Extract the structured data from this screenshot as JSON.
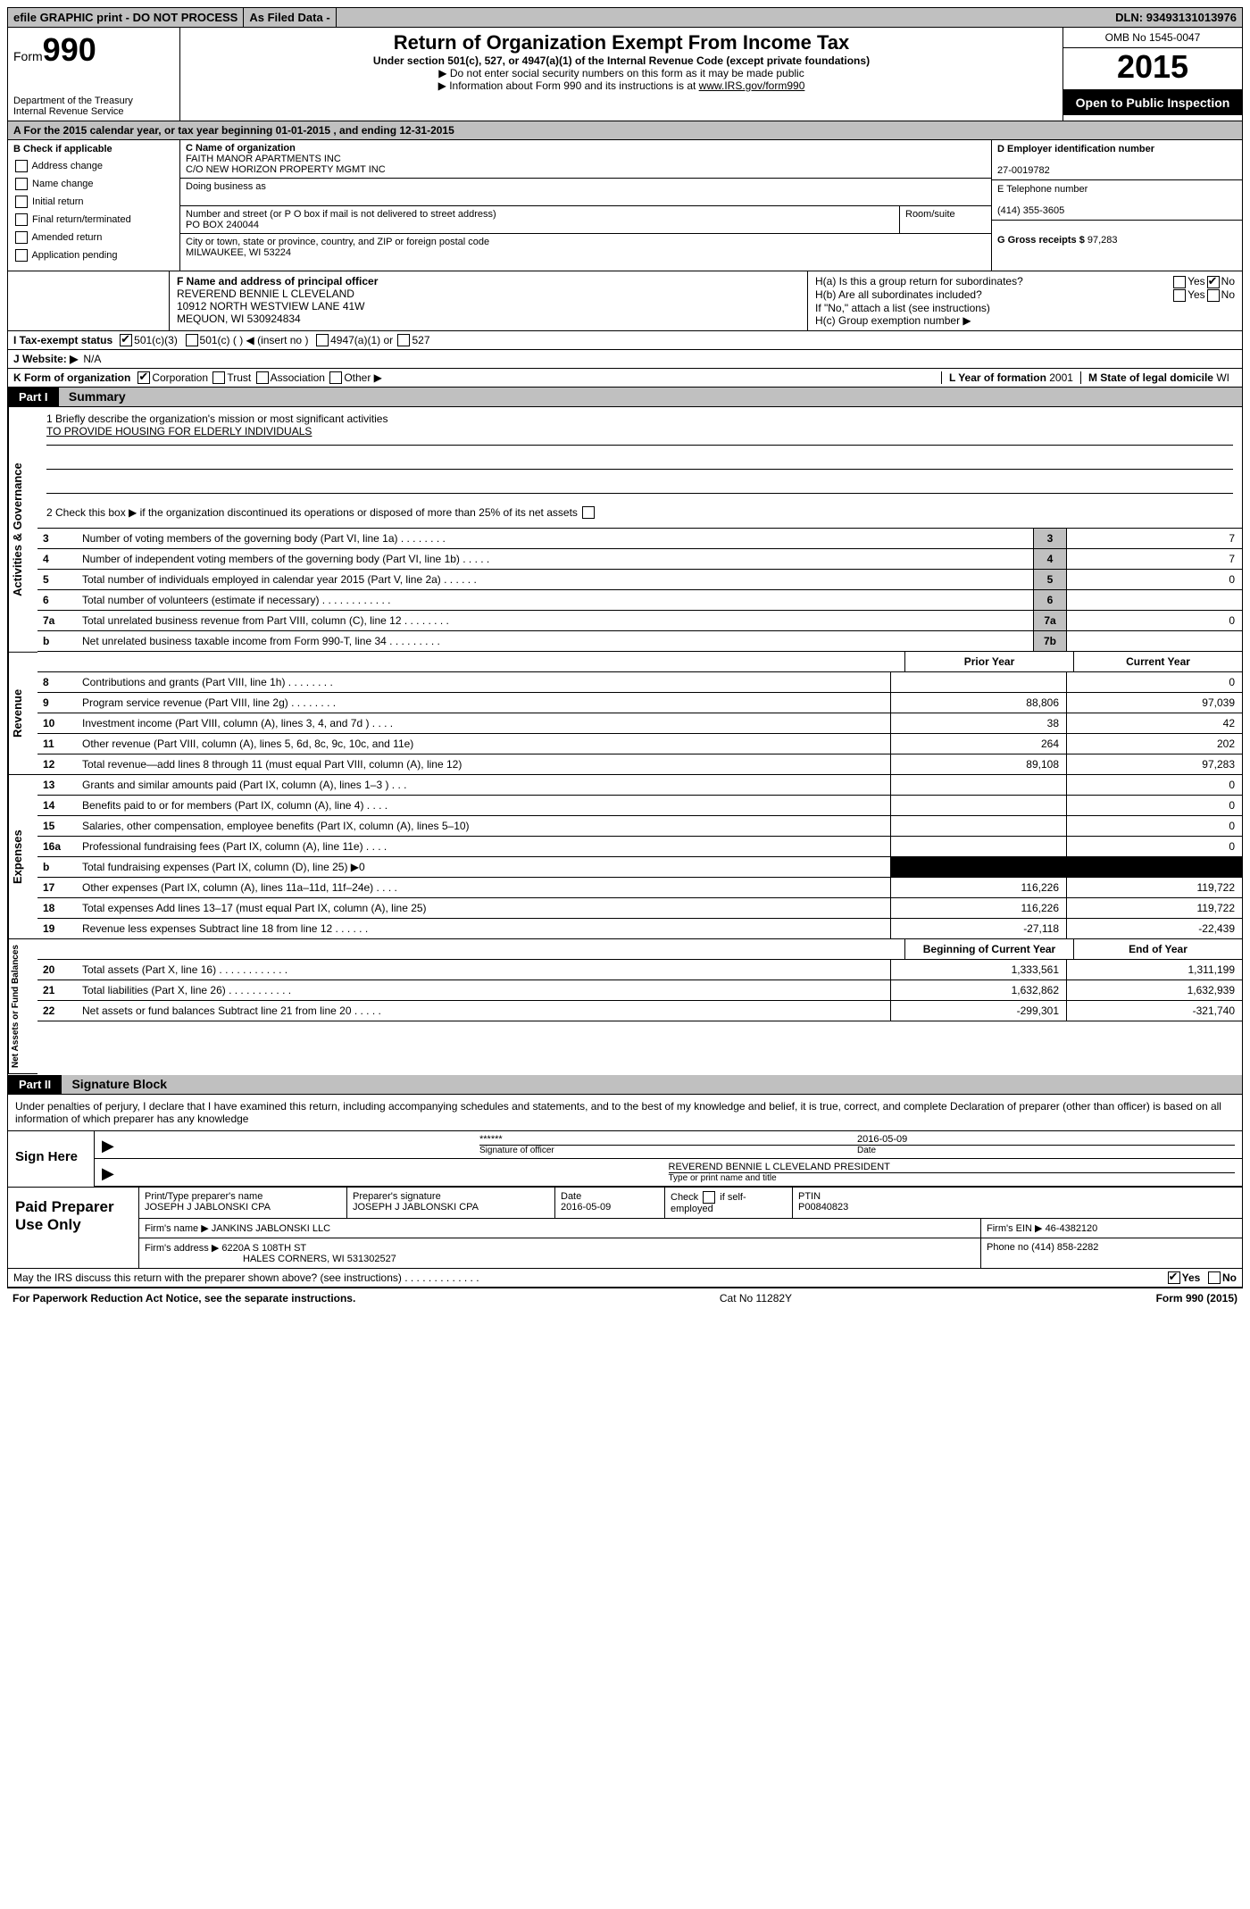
{
  "topbar": {
    "efile": "efile GRAPHIC print - DO NOT PROCESS",
    "asfiled": "As Filed Data -",
    "dln_label": "DLN:",
    "dln": "93493131013976"
  },
  "header": {
    "form_label": "Form",
    "form_num": "990",
    "dept": "Department of the Treasury",
    "irs": "Internal Revenue Service",
    "title": "Return of Organization Exempt From Income Tax",
    "subtitle": "Under section 501(c), 527, or 4947(a)(1) of the Internal Revenue Code (except private foundations)",
    "note1": "▶ Do not enter social security numbers on this form as it may be made public",
    "note2": "▶ Information about Form 990 and its instructions is at ",
    "note2_link": "www.IRS.gov/form990",
    "omb": "OMB No  1545-0047",
    "year": "2015",
    "open": "Open to Public Inspection"
  },
  "row_a": "A   For the 2015 calendar year, or tax year beginning 01-01-2015     , and ending 12-31-2015",
  "col_b": {
    "title": "B  Check if applicable",
    "items": [
      "Address change",
      "Name change",
      "Initial return",
      "Final return/terminated",
      "Amended return",
      "Application pending"
    ]
  },
  "col_c": {
    "name_label": "C Name of organization",
    "name1": "FAITH MANOR APARTMENTS INC",
    "name2": "C/O NEW HORIZON PROPERTY MGMT INC",
    "dba_label": "Doing business as",
    "street_label": "Number and street (or P O  box if mail is not delivered to street address)",
    "room_label": "Room/suite",
    "street": "PO BOX 240044",
    "city_label": "City or town, state or province, country, and ZIP or foreign postal code",
    "city": "MILWAUKEE, WI  53224"
  },
  "col_d": {
    "ein_label": "D Employer identification number",
    "ein": "27-0019782",
    "phone_label": "E Telephone number",
    "phone": "(414) 355-3605",
    "gross_label": "G Gross receipts $",
    "gross": "97,283"
  },
  "fh": {
    "f_label": "F   Name and address of principal officer",
    "f_name": "REVEREND BENNIE L CLEVELAND",
    "f_addr1": "10912 NORTH WESTVIEW LANE 41W",
    "f_addr2": "MEQUON, WI  530924834",
    "ha": "H(a)  Is this a group return for subordinates?",
    "hb": "H(b)  Are all subordinates included?",
    "hnote": "If \"No,\" attach a list  (see instructions)",
    "hc": "H(c)   Group exemption number ▶",
    "yes": "Yes",
    "no": "No"
  },
  "line_i": {
    "label": "I   Tax-exempt status",
    "o1": "501(c)(3)",
    "o2": "501(c) (   ) ◀ (insert no )",
    "o3": "4947(a)(1) or",
    "o4": "527"
  },
  "line_j": {
    "label": "J   Website: ▶",
    "value": "N/A"
  },
  "line_k": {
    "label": "K Form of organization",
    "o1": "Corporation",
    "o2": "Trust",
    "o3": "Association",
    "o4": "Other ▶",
    "l_label": "L Year of formation",
    "l_val": "2001",
    "m_label": "M State of legal domicile",
    "m_val": "WI"
  },
  "part1": {
    "header": "Part I",
    "title": "Summary"
  },
  "vtabs": {
    "ag": "Activities & Governance",
    "rev": "Revenue",
    "exp": "Expenses",
    "net": "Net Assets or Fund Balances"
  },
  "mission": {
    "q1": "1 Briefly describe the organization's mission or most significant activities",
    "a1": "TO PROVIDE HOUSING FOR ELDERLY INDIVIDUALS",
    "q2": "2  Check this box ▶       if the organization discontinued its operations or disposed of more than 25% of its net assets"
  },
  "ag_rows": [
    {
      "n": "3",
      "d": "Number of voting members of the governing body (Part VI, line 1a)   .    .    .    .    .    .    .    .",
      "b": "3",
      "v": "7"
    },
    {
      "n": "4",
      "d": "Number of independent voting members of the governing body (Part VI, line 1b)    .    .    .    .    .",
      "b": "4",
      "v": "7"
    },
    {
      "n": "5",
      "d": "Total number of individuals employed in calendar year 2015 (Part V, line 2a)    .    .    .    .    .    .",
      "b": "5",
      "v": "0"
    },
    {
      "n": "6",
      "d": "Total number of volunteers (estimate if necessary)    .    .    .    .    .    .    .    .    .    .    .    .",
      "b": "6",
      "v": ""
    },
    {
      "n": "7a",
      "d": "Total unrelated business revenue from Part VIII, column (C), line 12    .    .    .    .    .    .    .    .",
      "b": "7a",
      "v": "0"
    },
    {
      "n": "b",
      "d": "Net unrelated business taxable income from Form 990-T, line 34    .    .    .    .    .    .    .    .    .",
      "b": "7b",
      "v": ""
    }
  ],
  "col_head": {
    "prior": "Prior Year",
    "current": "Current Year"
  },
  "rev_rows": [
    {
      "n": "8",
      "d": "Contributions and grants (Part VIII, line 1h)    .    .    .    .    .    .    .    .",
      "p": "",
      "c": "0"
    },
    {
      "n": "9",
      "d": "Program service revenue (Part VIII, line 2g)    .    .    .    .    .    .    .    .",
      "p": "88,806",
      "c": "97,039"
    },
    {
      "n": "10",
      "d": "Investment income (Part VIII, column (A), lines 3, 4, and 7d )    .    .    .    .",
      "p": "38",
      "c": "42"
    },
    {
      "n": "11",
      "d": "Other revenue (Part VIII, column (A), lines 5, 6d, 8c, 9c, 10c, and 11e)",
      "p": "264",
      "c": "202"
    },
    {
      "n": "12",
      "d": "Total revenue—add lines 8 through 11 (must equal Part VIII, column (A), line 12)",
      "p": "89,108",
      "c": "97,283"
    }
  ],
  "exp_rows": [
    {
      "n": "13",
      "d": "Grants and similar amounts paid (Part IX, column (A), lines 1–3 )    .    .    .",
      "p": "",
      "c": "0"
    },
    {
      "n": "14",
      "d": "Benefits paid to or for members (Part IX, column (A), line 4)    .    .    .    .",
      "p": "",
      "c": "0"
    },
    {
      "n": "15",
      "d": "Salaries, other compensation, employee benefits (Part IX, column (A), lines 5–10)",
      "p": "",
      "c": "0"
    },
    {
      "n": "16a",
      "d": "Professional fundraising fees (Part IX, column (A), line 11e)    .    .    .    .",
      "p": "",
      "c": "0"
    },
    {
      "n": "b",
      "d": "Total fundraising expenses (Part IX, column (D), line 25) ▶0",
      "p": "BLACK",
      "c": "BLACK"
    },
    {
      "n": "17",
      "d": "Other expenses (Part IX, column (A), lines 11a–11d, 11f–24e)    .    .    .    .",
      "p": "116,226",
      "c": "119,722"
    },
    {
      "n": "18",
      "d": "Total expenses  Add lines 13–17 (must equal Part IX, column (A), line 25)",
      "p": "116,226",
      "c": "119,722"
    },
    {
      "n": "19",
      "d": "Revenue less expenses  Subtract line 18 from line 12    .    .    .    .    .    .",
      "p": "-27,118",
      "c": "-22,439"
    }
  ],
  "net_head": {
    "begin": "Beginning of Current Year",
    "end": "End of Year"
  },
  "net_rows": [
    {
      "n": "20",
      "d": "Total assets (Part X, line 16)    .    .    .    .    .    .    .    .    .    .    .    .",
      "p": "1,333,561",
      "c": "1,311,199"
    },
    {
      "n": "21",
      "d": "Total liabilities (Part X, line 26)    .    .    .    .    .    .    .    .    .    .    .",
      "p": "1,632,862",
      "c": "1,632,939"
    },
    {
      "n": "22",
      "d": "Net assets or fund balances  Subtract line 21 from line 20    .    .    .    .    .",
      "p": "-299,301",
      "c": "-321,740"
    }
  ],
  "part2": {
    "header": "Part II",
    "title": "Signature Block"
  },
  "sig": {
    "declaration": "Under penalties of perjury, I declare that I have examined this return, including accompanying schedules and statements, and to the best of my knowledge and belief, it is true, correct, and complete  Declaration of preparer (other than officer) is based on all information of which preparer has any knowledge",
    "sign_here": "Sign Here",
    "stars": "******",
    "sig_of_officer": "Signature of officer",
    "date_label": "Date",
    "date": "2016-05-09",
    "officer_name": "REVEREND BENNIE L CLEVELAND PRESIDENT",
    "type_name": "Type or print name and title"
  },
  "prep": {
    "label": "Paid Preparer Use Only",
    "h1": "Print/Type preparer's name",
    "v1": "JOSEPH J JABLONSKI CPA",
    "h2": "Preparer's signature",
    "v2": "JOSEPH J JABLONSKI CPA",
    "h3": "Date",
    "v3": "2016-05-09",
    "h4": "Check        if self-employed",
    "h5": "PTIN",
    "v5": "P00840823",
    "firm_name_l": "Firm's name      ▶",
    "firm_name": "JANKINS JABLONSKI LLC",
    "firm_ein_l": "Firm's EIN ▶",
    "firm_ein": "46-4382120",
    "firm_addr_l": "Firm's address  ▶",
    "firm_addr1": "6220A S 108TH ST",
    "firm_addr2": "HALES CORNERS, WI  531302527",
    "phone_l": "Phone no",
    "phone": "(414) 858-2282"
  },
  "discuss": {
    "text": "May the IRS discuss this return with the preparer shown above? (see instructions)    .    .    .    .    .    .    .    .    .    .    .    .  .",
    "yes": "Yes",
    "no": "No"
  },
  "bottom": {
    "left": "For Paperwork Reduction Act Notice, see the separate instructions.",
    "mid": "Cat  No  11282Y",
    "right": "Form 990 (2015)"
  }
}
